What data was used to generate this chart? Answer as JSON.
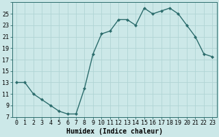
{
  "x": [
    0,
    1,
    2,
    3,
    4,
    5,
    6,
    7,
    8,
    9,
    10,
    11,
    12,
    13,
    14,
    15,
    16,
    17,
    18,
    19,
    20,
    21,
    22,
    23
  ],
  "y": [
    13,
    13,
    11,
    10,
    9,
    8,
    7.5,
    7.5,
    12,
    18,
    21.5,
    22,
    24,
    24,
    23,
    26,
    25,
    25.5,
    26,
    25,
    23,
    21,
    18,
    17.5
  ],
  "line_color": "#2a6b6b",
  "marker": "D",
  "marker_size": 2.2,
  "bg_color": "#cce8e8",
  "grid_color": "#b0d4d4",
  "xlabel": "Humidex (Indice chaleur)",
  "xlabel_fontsize": 7,
  "tick_fontsize": 6,
  "xlim": [
    -0.5,
    23.5
  ],
  "ylim": [
    7,
    27
  ],
  "yticks": [
    7,
    9,
    11,
    13,
    15,
    17,
    19,
    21,
    23,
    25
  ],
  "xticks": [
    0,
    1,
    2,
    3,
    4,
    5,
    6,
    7,
    8,
    9,
    10,
    11,
    12,
    13,
    14,
    15,
    16,
    17,
    18,
    19,
    20,
    21,
    22,
    23
  ]
}
